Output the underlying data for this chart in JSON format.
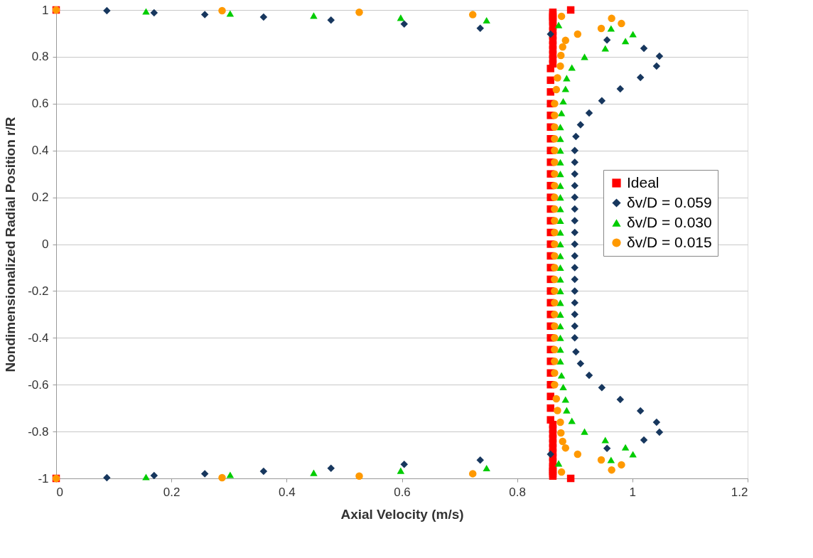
{
  "chart_data": {
    "type": "scatter",
    "xlabel": "Axial Velocity (m/s)",
    "ylabel": "Nondimensionalized Radial Position r/R",
    "xlim": [
      0,
      1.2
    ],
    "xticks": [
      0,
      0.2,
      0.4,
      0.6,
      0.8,
      1,
      1.2
    ],
    "ylim": [
      -1,
      1
    ],
    "yticks": [
      -1,
      -0.8,
      -0.6,
      -0.4,
      -0.2,
      0,
      0.2,
      0.4,
      0.6,
      0.8,
      1
    ],
    "grid": "y",
    "legend": "right",
    "series": [
      {
        "name": "Ideal",
        "color": "#ff0000",
        "marker": "square",
        "x": [
          0,
          0.893,
          0.862,
          0.862,
          0.862,
          0.862,
          0.862,
          0.862,
          0.862,
          0.862,
          0.862,
          0.862,
          0.862,
          0.862,
          0.862,
          0.862,
          0.858,
          0.858,
          0.858,
          0.858,
          0.858,
          0.858,
          0.858,
          0.858,
          0.858,
          0.858,
          0.858,
          0.858,
          0.858,
          0.858,
          0.858,
          0.858,
          0.858,
          0.858,
          0.858,
          0.858,
          0.858,
          0.858,
          0.858,
          0.858,
          0.858,
          0.858,
          0.858,
          0.858,
          0.858,
          0.858,
          0.858,
          0.862,
          0.862,
          0.862,
          0.862,
          0.862,
          0.862,
          0.862,
          0.862,
          0.862,
          0.862,
          0.862,
          0.862,
          0.862,
          0.862,
          0.893,
          0
        ],
        "values": [
          1,
          1,
          0.99,
          0.98,
          0.97,
          0.96,
          0.95,
          0.93,
          0.91,
          0.89,
          0.87,
          0.85,
          0.83,
          0.81,
          0.79,
          0.77,
          0.75,
          0.7,
          0.65,
          0.6,
          0.55,
          0.5,
          0.45,
          0.4,
          0.35,
          0.3,
          0.25,
          0.2,
          0.15,
          0.1,
          0.05,
          0,
          -0.05,
          -0.1,
          -0.15,
          -0.2,
          -0.25,
          -0.3,
          -0.35,
          -0.4,
          -0.45,
          -0.5,
          -0.55,
          -0.6,
          -0.65,
          -0.7,
          -0.75,
          -0.77,
          -0.79,
          -0.81,
          -0.83,
          -0.85,
          -0.87,
          -0.89,
          -0.91,
          -0.93,
          -0.95,
          -0.96,
          -0.97,
          -0.98,
          -0.99,
          -1,
          -1
        ]
      },
      {
        "name": "δv/D = 0.059",
        "color": "#17375e",
        "marker": "diamond",
        "x": [
          null,
          0.088,
          0.17,
          0.258,
          0.36,
          0.477,
          0.604,
          0.736,
          0.858,
          0.956,
          1.02,
          1.047,
          1.042,
          1.014,
          0.979,
          0.947,
          0.925,
          0.91,
          0.902,
          0.9,
          0.9,
          0.9,
          0.9,
          0.9,
          0.9,
          0.9,
          0.9,
          0.9,
          0.9,
          0.9,
          0.9,
          0.9,
          0.9,
          0.9,
          0.9,
          0.9,
          0.902,
          0.91,
          0.925,
          0.947,
          0.979,
          1.014,
          1.042,
          1.047,
          1.02,
          0.956,
          0.858,
          0.736,
          0.604,
          0.477,
          0.36,
          0.258,
          0.17,
          0.088,
          null
        ],
        "values": [
          null,
          0.997,
          0.988,
          0.98,
          0.97,
          0.957,
          0.94,
          0.922,
          0.897,
          0.872,
          0.836,
          0.803,
          0.76,
          0.712,
          0.663,
          0.612,
          0.56,
          0.51,
          0.46,
          0.4,
          0.35,
          0.3,
          0.25,
          0.2,
          0.15,
          0.1,
          0.05,
          0,
          -0.05,
          -0.1,
          -0.15,
          -0.2,
          -0.25,
          -0.3,
          -0.35,
          -0.4,
          -0.46,
          -0.51,
          -0.56,
          -0.612,
          -0.663,
          -0.712,
          -0.76,
          -0.803,
          -0.836,
          -0.872,
          -0.897,
          -0.922,
          -0.94,
          -0.957,
          -0.97,
          -0.98,
          -0.988,
          -0.997,
          null
        ]
      },
      {
        "name": "δv/D = 0.030",
        "color": "#00cc00",
        "marker": "triangle",
        "x": [
          null,
          0.156,
          0.302,
          0.447,
          0.598,
          0.747,
          0.872,
          0.963,
          1.001,
          0.988,
          0.953,
          0.917,
          0.895,
          0.886,
          0.884,
          0.88,
          0.877,
          0.875,
          0.875,
          0.875,
          0.875,
          0.875,
          0.875,
          0.875,
          0.875,
          0.875,
          0.875,
          0.875,
          0.875,
          0.875,
          0.875,
          0.875,
          0.875,
          0.875,
          0.875,
          0.875,
          0.875,
          0.875,
          0.877,
          0.88,
          0.884,
          0.886,
          0.895,
          0.917,
          0.953,
          0.988,
          1.001,
          0.963,
          0.872,
          0.747,
          0.598,
          0.447,
          0.302,
          0.156,
          null
        ],
        "values": [
          null,
          0.994,
          0.985,
          0.976,
          0.967,
          0.956,
          0.936,
          0.921,
          0.897,
          0.867,
          0.836,
          0.8,
          0.754,
          0.709,
          0.663,
          0.61,
          0.56,
          0.5,
          0.45,
          0.4,
          0.35,
          0.3,
          0.25,
          0.2,
          0.15,
          0.1,
          0.05,
          0,
          -0.05,
          -0.1,
          -0.15,
          -0.2,
          -0.25,
          -0.3,
          -0.35,
          -0.4,
          -0.45,
          -0.5,
          -0.56,
          -0.61,
          -0.663,
          -0.709,
          -0.754,
          -0.8,
          -0.836,
          -0.867,
          -0.897,
          -0.921,
          -0.936,
          -0.956,
          -0.967,
          -0.976,
          -0.985,
          -0.994,
          null
        ]
      },
      {
        "name": "δv/D = 0.015",
        "color": "#ff9900",
        "marker": "circle",
        "x": [
          0,
          0.288,
          0.526,
          0.723,
          0.877,
          0.964,
          0.981,
          0.946,
          0.905,
          0.884,
          0.879,
          0.876,
          0.875,
          0.87,
          0.868,
          0.865,
          0.865,
          0.865,
          0.865,
          0.865,
          0.865,
          0.865,
          0.865,
          0.865,
          0.865,
          0.865,
          0.865,
          0.865,
          0.865,
          0.865,
          0.865,
          0.865,
          0.865,
          0.865,
          0.865,
          0.865,
          0.865,
          0.865,
          0.865,
          0.865,
          0.868,
          0.87,
          0.875,
          0.876,
          0.879,
          0.884,
          0.905,
          0.946,
          0.981,
          0.964,
          0.877,
          0.723,
          0.526,
          0.288,
          0
        ],
        "values": [
          1,
          0.997,
          0.99,
          0.98,
          0.973,
          0.964,
          0.942,
          0.921,
          0.897,
          0.87,
          0.842,
          0.806,
          0.76,
          0.71,
          0.66,
          0.6,
          0.55,
          0.5,
          0.45,
          0.4,
          0.35,
          0.3,
          0.25,
          0.2,
          0.15,
          0.1,
          0.05,
          0,
          -0.05,
          -0.1,
          -0.15,
          -0.2,
          -0.25,
          -0.3,
          -0.35,
          -0.4,
          -0.45,
          -0.5,
          -0.55,
          -0.6,
          -0.66,
          -0.71,
          -0.76,
          -0.806,
          -0.842,
          -0.87,
          -0.897,
          -0.921,
          -0.942,
          -0.964,
          -0.973,
          -0.98,
          -0.99,
          -0.997,
          -1
        ]
      }
    ]
  }
}
